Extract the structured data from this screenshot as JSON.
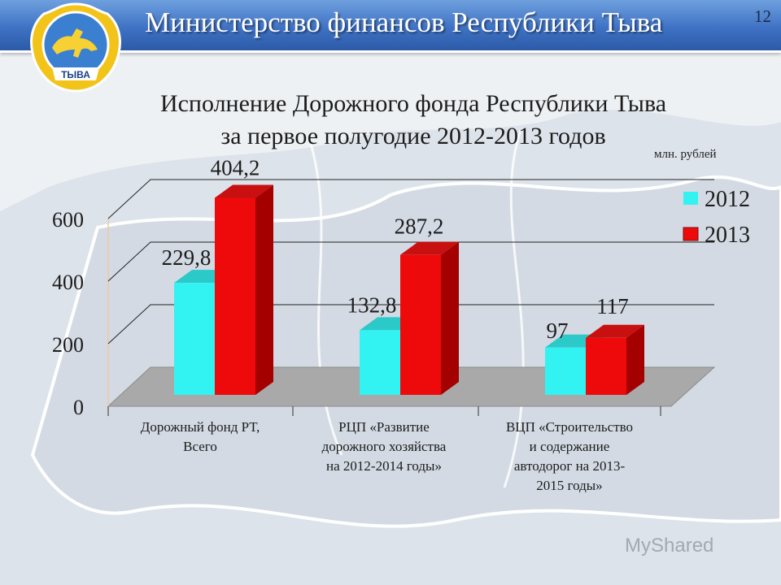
{
  "header": {
    "title": "Министерство финансов Республики Тыва",
    "slide_number": "12",
    "logo_text": "ТЫВА"
  },
  "title_lines": [
    "Исполнение Дорожного фонда Республики Тыва",
    "за первое полугодие 2012-2013 годов"
  ],
  "unit_label": "млн. рублей",
  "watermark": "MyShared",
  "colors": {
    "series_2012": "#33f2f2",
    "series_2013": "#ee0a0a",
    "header_blue": "#3f72c4"
  },
  "chart_data": {
    "type": "bar",
    "categories": [
      [
        "Дорожный фонд РТ,",
        "Всего"
      ],
      [
        "РЦП «Развитие",
        "дорожного хозяйства",
        "на 2012-2014 годы»"
      ],
      [
        "ВЦП «Строительство",
        "и содержание",
        "автодорог на 2013-",
        "2015 годы»"
      ]
    ],
    "series": [
      {
        "name": "2012",
        "values": [
          229.8,
          132.8,
          97
        ],
        "labels": [
          "229,8",
          "132,8",
          "97"
        ]
      },
      {
        "name": "2013",
        "values": [
          404.2,
          287.2,
          117
        ],
        "labels": [
          "404,2",
          "287,2",
          "117"
        ]
      }
    ],
    "y_ticks": [
      "0",
      "200",
      "400",
      "600"
    ],
    "ylim": [
      0,
      600
    ],
    "grid": true,
    "legend": "top-right",
    "style": "3d-clustered-column"
  }
}
